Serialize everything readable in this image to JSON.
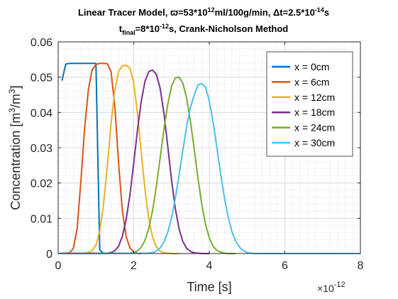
{
  "chart_data": {
    "type": "line",
    "title_line1": {
      "prefix": "Linear Tracer Model, ",
      "omega_symbol": "ϖ",
      "omega_eq": "=53*10",
      "omega_exp": "12",
      "omega_unit": "ml/100g/min, ",
      "dt_symbol": "Δ",
      "dt_eq": "t=2.5*10",
      "dt_exp": "-14",
      "dt_unit": "s"
    },
    "title_line2": {
      "t": "t",
      "sub": "final",
      "eq": "=8*10",
      "exp": "-12",
      "suffix": "s, Crank-Nicholson Method"
    },
    "xlabel": "Time [s]",
    "ylabel": {
      "base": "Concentration [m",
      "exp1": "3",
      "mid": "/m",
      "exp2": "3",
      "end": "]"
    },
    "x_exponent": {
      "base": "×10",
      "exp": "-12"
    },
    "xlim": [
      0,
      8
    ],
    "ylim": [
      0,
      0.06
    ],
    "x_ticks": [
      0,
      2,
      4,
      6,
      8
    ],
    "x_tick_labels": [
      "0",
      "2",
      "4",
      "6",
      "8"
    ],
    "y_ticks": [
      0,
      0.01,
      0.02,
      0.03,
      0.04,
      0.05,
      0.06
    ],
    "y_tick_labels": [
      "0",
      "0.01",
      "0.02",
      "0.03",
      "0.04",
      "0.05",
      "0.06"
    ],
    "grid": true,
    "minor_grid": true,
    "legend_position": "top-right",
    "series": [
      {
        "name": "x = 0cm",
        "color": "#0072BD",
        "x": [
          0.1,
          0.2,
          0.3,
          0.4,
          0.5,
          0.6,
          0.7,
          0.8,
          0.9,
          1.0,
          1.1,
          1.2
        ],
        "y": [
          0.049,
          0.0537,
          0.0539,
          0.0539,
          0.0539,
          0.0539,
          0.0539,
          0.0539,
          0.0539,
          0.0539,
          0.001,
          0.0001
        ]
      },
      {
        "name": "x = 6cm",
        "color": "#D95319",
        "x": [
          0.0,
          0.3,
          0.4,
          0.5,
          0.6,
          0.7,
          0.8,
          0.9,
          1.0,
          1.1,
          1.2,
          1.3,
          1.4,
          1.5,
          1.6,
          1.7,
          1.8,
          1.9,
          2.0,
          2.1,
          2.2
        ],
        "y": [
          0.0,
          0.0002,
          0.0014,
          0.0069,
          0.0204,
          0.0355,
          0.0465,
          0.0521,
          0.0536,
          0.0539,
          0.0539,
          0.0538,
          0.0516,
          0.0417,
          0.0255,
          0.0121,
          0.0048,
          0.0016,
          0.0005,
          0.0001,
          0.0
        ]
      },
      {
        "name": "x = 12cm",
        "color": "#EDB120",
        "x": [
          0.0,
          0.7,
          0.8,
          0.9,
          1.0,
          1.1,
          1.2,
          1.3,
          1.4,
          1.5,
          1.6,
          1.7,
          1.8,
          1.9,
          2.0,
          2.1,
          2.2,
          2.3,
          2.4,
          2.5,
          2.6,
          2.7,
          2.8,
          2.9,
          3.0,
          3.2
        ],
        "y": [
          0.0,
          0.0001,
          0.0003,
          0.0008,
          0.0024,
          0.0064,
          0.0138,
          0.0248,
          0.0368,
          0.0464,
          0.0517,
          0.0532,
          0.0534,
          0.0525,
          0.0484,
          0.0397,
          0.0286,
          0.0179,
          0.0097,
          0.0046,
          0.0019,
          0.0007,
          0.0002,
          0.0001,
          0.0,
          0.0
        ]
      },
      {
        "name": "x = 18cm",
        "color": "#7E2F8E",
        "x": [
          0.0,
          1.3,
          1.4,
          1.5,
          1.6,
          1.7,
          1.8,
          1.9,
          2.0,
          2.1,
          2.2,
          2.3,
          2.4,
          2.5,
          2.6,
          2.7,
          2.8,
          2.9,
          3.0,
          3.1,
          3.2,
          3.3,
          3.4,
          3.5,
          3.6,
          3.7,
          3.8,
          4.0
        ],
        "y": [
          0.0,
          0.0001,
          0.0003,
          0.0008,
          0.0021,
          0.0049,
          0.0097,
          0.0167,
          0.0256,
          0.0351,
          0.0432,
          0.0489,
          0.0516,
          0.052,
          0.0508,
          0.0468,
          0.0397,
          0.0305,
          0.0209,
          0.0128,
          0.007,
          0.0034,
          0.0015,
          0.0006,
          0.0002,
          0.0001,
          0.0,
          0.0
        ]
      },
      {
        "name": "x = 24cm",
        "color": "#77AC30",
        "x": [
          0.0,
          1.9,
          2.0,
          2.1,
          2.2,
          2.3,
          2.4,
          2.5,
          2.6,
          2.7,
          2.8,
          2.9,
          3.0,
          3.1,
          3.2,
          3.3,
          3.4,
          3.5,
          3.6,
          3.7,
          3.8,
          3.9,
          4.0,
          4.1,
          4.2,
          4.3,
          4.4,
          4.5,
          4.7
        ],
        "y": [
          0.0,
          0.0001,
          0.0003,
          0.0008,
          0.0018,
          0.0038,
          0.0072,
          0.0123,
          0.0191,
          0.0271,
          0.0352,
          0.0423,
          0.0474,
          0.0498,
          0.05,
          0.0483,
          0.0441,
          0.0376,
          0.0297,
          0.0214,
          0.014,
          0.0083,
          0.0044,
          0.0021,
          0.0009,
          0.0004,
          0.0001,
          0.0,
          0.0
        ]
      },
      {
        "name": "x = 30cm",
        "color": "#4DBEEE",
        "x": [
          0.0,
          2.4,
          2.5,
          2.6,
          2.7,
          2.8,
          2.9,
          3.0,
          3.1,
          3.2,
          3.3,
          3.4,
          3.5,
          3.6,
          3.7,
          3.8,
          3.9,
          4.0,
          4.1,
          4.2,
          4.3,
          4.4,
          4.5,
          4.6,
          4.7,
          4.8,
          4.9,
          5.0,
          5.1,
          5.2,
          5.4,
          8.0
        ],
        "y": [
          0.0,
          0.0001,
          0.0003,
          0.0007,
          0.0016,
          0.0033,
          0.006,
          0.0101,
          0.0156,
          0.0222,
          0.0293,
          0.036,
          0.0414,
          0.0449,
          0.0478,
          0.0482,
          0.0472,
          0.0433,
          0.0373,
          0.0301,
          0.0227,
          0.0159,
          0.0103,
          0.0062,
          0.0035,
          0.0018,
          0.0008,
          0.0003,
          0.0001,
          0.0,
          0.0,
          0.0
        ]
      }
    ]
  }
}
